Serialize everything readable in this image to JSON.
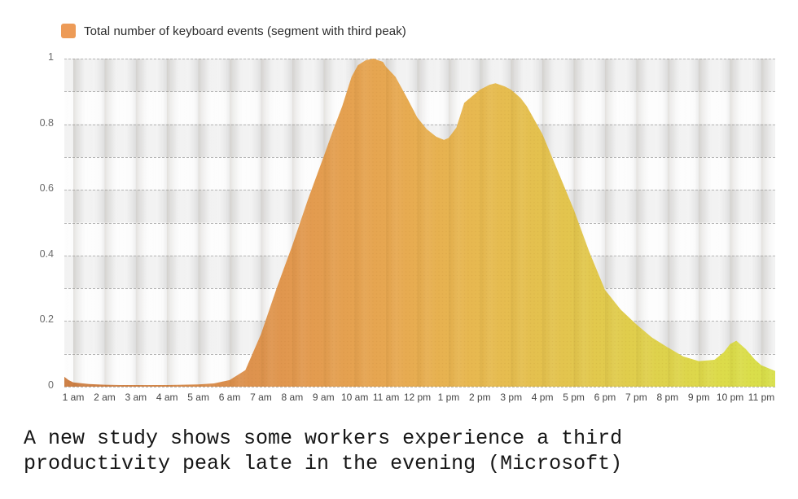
{
  "legend": {
    "label": "Total number of keyboard events (segment with third peak)",
    "swatch_color": "#ED9B57"
  },
  "caption": {
    "line1": "A new study shows some workers experience a third",
    "line2": "productivity peak late in the evening (Microsoft)"
  },
  "chart_data": {
    "type": "area",
    "title": "",
    "series_name": "Total number of keyboard events (segment with third peak)",
    "legend_position": "top-left",
    "grid": "plaid background, dashed horizontal gridlines every 0.1",
    "ylim": [
      0,
      1
    ],
    "grid_step": 0.1,
    "ytick_labels": [
      "1",
      "0.8",
      "0.6",
      "0.4",
      "0.2",
      "0"
    ],
    "ytick_values": [
      1,
      0.8,
      0.6,
      0.4,
      0.2,
      0
    ],
    "x_categories": [
      "1 am",
      "2 am",
      "3 am",
      "4 am",
      "5 am",
      "6 am",
      "7 am",
      "8 am",
      "9 am",
      "10 am",
      "11 am",
      "12 pm",
      "1 pm",
      "2 pm",
      "3 pm",
      "4 pm",
      "5 pm",
      "6 pm",
      "7 pm",
      "8 pm",
      "9 pm",
      "10 pm",
      "11 pm"
    ],
    "x_unit": "hour of day (decimal hours, 1 = 1 am, 13 = 1 pm)",
    "series": [
      {
        "name": "Total number of keyboard events (segment with third peak)",
        "points": [
          [
            0.71,
            0.03
          ],
          [
            0.85,
            0.02
          ],
          [
            1,
            0.013
          ],
          [
            1.5,
            0.008
          ],
          [
            2,
            0.006
          ],
          [
            2.5,
            0.005
          ],
          [
            3,
            0.005
          ],
          [
            3.5,
            0.005
          ],
          [
            4,
            0.005
          ],
          [
            4.5,
            0.006
          ],
          [
            5,
            0.007
          ],
          [
            5.5,
            0.01
          ],
          [
            6,
            0.02
          ],
          [
            6.5,
            0.05
          ],
          [
            7,
            0.16
          ],
          [
            7.5,
            0.3
          ],
          [
            8,
            0.43
          ],
          [
            8.5,
            0.57
          ],
          [
            9,
            0.7
          ],
          [
            9.3,
            0.78
          ],
          [
            9.6,
            0.855
          ],
          [
            9.9,
            0.945
          ],
          [
            10.1,
            0.98
          ],
          [
            10.35,
            0.995
          ],
          [
            10.6,
            1.0
          ],
          [
            10.9,
            0.99
          ],
          [
            11,
            0.975
          ],
          [
            11.3,
            0.945
          ],
          [
            11.5,
            0.91
          ],
          [
            11.7,
            0.875
          ],
          [
            12,
            0.82
          ],
          [
            12.3,
            0.785
          ],
          [
            12.6,
            0.762
          ],
          [
            12.85,
            0.752
          ],
          [
            13,
            0.758
          ],
          [
            13.25,
            0.79
          ],
          [
            13.5,
            0.865
          ],
          [
            14,
            0.905
          ],
          [
            14.3,
            0.92
          ],
          [
            14.5,
            0.925
          ],
          [
            14.8,
            0.915
          ],
          [
            15,
            0.905
          ],
          [
            15.3,
            0.88
          ],
          [
            15.5,
            0.855
          ],
          [
            16,
            0.77
          ],
          [
            16.5,
            0.655
          ],
          [
            17,
            0.54
          ],
          [
            17.5,
            0.41
          ],
          [
            18,
            0.295
          ],
          [
            18.5,
            0.235
          ],
          [
            19,
            0.19
          ],
          [
            19.5,
            0.15
          ],
          [
            20,
            0.12
          ],
          [
            20.5,
            0.092
          ],
          [
            21,
            0.078
          ],
          [
            21.5,
            0.082
          ],
          [
            21.8,
            0.105
          ],
          [
            22,
            0.13
          ],
          [
            22.2,
            0.14
          ],
          [
            22.5,
            0.115
          ],
          [
            22.8,
            0.082
          ],
          [
            23,
            0.065
          ],
          [
            23.45,
            0.048
          ]
        ]
      }
    ],
    "peaks_depicted": {
      "first_peak": {
        "time": "10:30-11 am",
        "value": 1.0
      },
      "midday_dip": {
        "time": "~12:50 pm",
        "value": 0.75
      },
      "second_peak": {
        "time": "~2:30-3 pm",
        "value": 0.92
      },
      "evening_trough": {
        "time": "~9 pm",
        "value": 0.08
      },
      "third_peak": {
        "time": "~10 pm",
        "value": 0.14
      }
    },
    "gradient_stops": [
      {
        "offset": 0.0,
        "color": "#cd7f45"
      },
      {
        "offset": 0.1,
        "color": "#d28549"
      },
      {
        "offset": 0.22,
        "color": "#da8e4d"
      },
      {
        "offset": 0.33,
        "color": "#e2994f"
      },
      {
        "offset": 0.46,
        "color": "#e7a851"
      },
      {
        "offset": 0.58,
        "color": "#e7b950"
      },
      {
        "offset": 0.7,
        "color": "#e3c44e"
      },
      {
        "offset": 0.82,
        "color": "#dfd04c"
      },
      {
        "offset": 0.92,
        "color": "#dcdb4a"
      },
      {
        "offset": 1.0,
        "color": "#d8e04a"
      }
    ],
    "colors": {
      "band_gray": "#e9e9e9",
      "band_light": "#fbfbfb",
      "gridline": "#a9a9a9",
      "x_label_text": "#454545",
      "y_label_text": "#6b6b6b"
    }
  }
}
